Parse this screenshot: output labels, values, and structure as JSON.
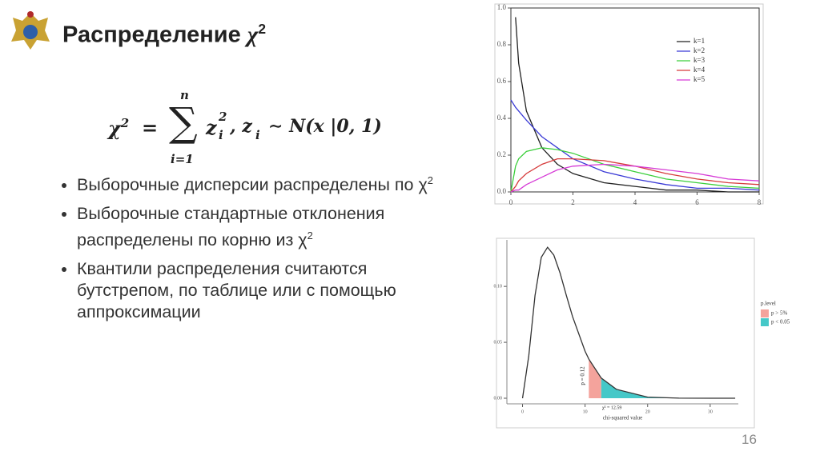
{
  "slide": {
    "title": {
      "text": "Распределение",
      "symbol": "χ",
      "sup": "2"
    },
    "formula": {
      "lhs": "χ",
      "lhs_sup": "2",
      "eq": "=",
      "sum": "∑",
      "upper": "n",
      "lower": "i=1",
      "z": "z",
      "z_sup": "2",
      "z_sub": "i",
      "sep": ", z",
      "sep_sub": "i",
      "rhs": "∼ N(x |0, 1)"
    },
    "bullets": [
      {
        "text": "Выборочные дисперсии распределены по χ",
        "sup": "2"
      },
      {
        "text": "Выборочные стандартные отклонения распределены по корню из χ",
        "sup": "2"
      },
      {
        "text": "Квантили распределения считаются бутстрепом, по таблице или с помощью аппроксимации"
      }
    ],
    "page_number": "16"
  },
  "chart_data": [
    {
      "type": "line",
      "x": [
        0,
        0.15,
        0.25,
        0.5,
        1,
        1.5,
        2,
        3,
        4,
        5,
        6,
        7,
        8
      ],
      "series": [
        {
          "name": "k=1",
          "color": "#222222",
          "values": [
            null,
            0.95,
            0.7,
            0.44,
            0.24,
            0.15,
            0.1,
            0.05,
            0.03,
            0.01,
            0.01,
            0.0,
            0.0
          ]
        },
        {
          "name": "k=2",
          "color": "#3b3bd6",
          "values": [
            0.5,
            0.46,
            0.44,
            0.39,
            0.3,
            0.24,
            0.18,
            0.11,
            0.07,
            0.04,
            0.02,
            0.02,
            0.01
          ]
        },
        {
          "name": "k=3",
          "color": "#3ccf3c",
          "values": [
            0,
            0.14,
            0.18,
            0.22,
            0.24,
            0.23,
            0.21,
            0.15,
            0.11,
            0.07,
            0.05,
            0.03,
            0.02
          ]
        },
        {
          "name": "k=4",
          "color": "#d63b3b",
          "values": [
            0,
            0.03,
            0.06,
            0.1,
            0.15,
            0.18,
            0.18,
            0.17,
            0.14,
            0.1,
            0.07,
            0.05,
            0.04
          ]
        },
        {
          "name": "k=5",
          "color": "#d63bd6",
          "values": [
            0,
            0.01,
            0.01,
            0.04,
            0.08,
            0.12,
            0.14,
            0.15,
            0.14,
            0.12,
            0.1,
            0.07,
            0.06
          ]
        }
      ],
      "xlim": [
        0,
        8
      ],
      "xticks": [
        0,
        2,
        4,
        6,
        8
      ],
      "ylim": [
        0,
        1
      ],
      "yticks": [
        {
          "value": 0,
          "label": "0.0"
        },
        0.2,
        0.4,
        0.6,
        0.8,
        {
          "value": 1,
          "label": "1.0"
        }
      ],
      "legend": "upper right"
    },
    {
      "type": "line",
      "x": [
        0,
        1,
        2,
        3,
        4,
        5,
        6,
        7,
        8,
        10,
        10.6,
        12.59,
        15,
        20,
        25,
        30,
        34
      ],
      "series": [
        {
          "color": "#333333",
          "values": [
            0,
            0.038,
            0.092,
            0.126,
            0.135,
            0.128,
            0.112,
            0.092,
            0.073,
            0.042,
            0.035,
            0.018,
            0.008,
            0.001,
            0.0001,
            0,
            0
          ]
        }
      ],
      "regions": [
        {
          "name": "p > 5%",
          "color": "#f4a39c",
          "x": [
            10.6,
            12.59
          ]
        },
        {
          "name": "p < 0.05",
          "color": "#45c8c8",
          "x": [
            12.59,
            34
          ]
        }
      ],
      "legend_title": "p.level",
      "x_label": "chi-squared value",
      "annotations": [
        "p = 0.12",
        "χ² = 12.59"
      ],
      "xlim": [
        -2.5,
        34.5
      ],
      "xticks": [
        0,
        10,
        20,
        30
      ],
      "ylim": [
        -0.005,
        0.138
      ],
      "yticks": [
        {
          "value": 0,
          "label": "0.00"
        },
        0.05,
        {
          "value": 0.1,
          "label": "0.10"
        }
      ],
      "legend": "right"
    }
  ]
}
